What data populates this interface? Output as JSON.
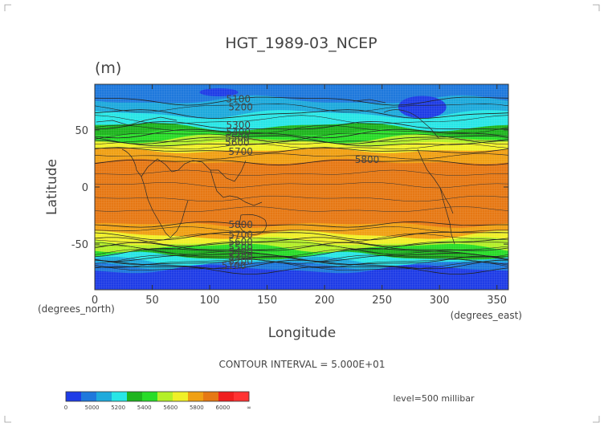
{
  "chart_data": {
    "type": "heatmap",
    "title": "HGT_1989-03_NCEP",
    "units": "(m)",
    "xlabel": "Longitude",
    "ylabel": "Latitude",
    "x_unit_left": "(degrees_north)",
    "x_unit_right": "(degrees_east)",
    "xlim": [
      0,
      360
    ],
    "ylim": [
      -90,
      90
    ],
    "xticks": [
      "0",
      "50",
      "100",
      "150",
      "200",
      "250",
      "300",
      "350"
    ],
    "xtick_values": [
      0,
      50,
      100,
      150,
      200,
      250,
      300,
      350
    ],
    "yticks": [
      "50",
      "0",
      "-50"
    ],
    "ytick_values": [
      50,
      0,
      -50
    ],
    "contour_interval": "CONTOUR INTERVAL = 5.000E+01",
    "level": "level=500 millibar",
    "contour_labels": [
      {
        "text": "5100",
        "lon": 125,
        "lat": 77
      },
      {
        "text": "5200",
        "lon": 127,
        "lat": 70
      },
      {
        "text": "5300",
        "lon": 125,
        "lat": 54
      },
      {
        "text": "5400",
        "lon": 125,
        "lat": 48
      },
      {
        "text": "5500",
        "lon": 124,
        "lat": 43
      },
      {
        "text": "5600",
        "lon": 124,
        "lat": 39
      },
      {
        "text": "5700",
        "lon": 127,
        "lat": 31
      },
      {
        "text": "5800",
        "lon": 237,
        "lat": 24
      },
      {
        "text": "5800",
        "lon": 127,
        "lat": -33
      },
      {
        "text": "5700",
        "lon": 127,
        "lat": -42
      },
      {
        "text": "5600",
        "lon": 127,
        "lat": -48
      },
      {
        "text": "5500",
        "lon": 127,
        "lat": -53
      },
      {
        "text": "5400",
        "lon": 127,
        "lat": -57
      },
      {
        "text": "5300",
        "lon": 127,
        "lat": -61
      },
      {
        "text": "5200",
        "lon": 127,
        "lat": -65
      },
      {
        "text": "5100",
        "lon": 121,
        "lat": -69
      }
    ],
    "bands": {
      "levels": [
        5000,
        5100,
        5200,
        5300,
        5400,
        5500,
        5600,
        5700,
        5800,
        5900,
        6000
      ],
      "colors": [
        "#1e3ce6",
        "#1e78dc",
        "#1eaadc",
        "#28e6e6",
        "#1eb41e",
        "#28dc28",
        "#b4f028",
        "#f0f028",
        "#f0a014",
        "#e67814",
        "#f01e1e",
        "#ff3232"
      ],
      "south_boundaries": [
        {
          "level": 5000,
          "lat": -72
        },
        {
          "level": 5100,
          "lat": -68
        },
        {
          "level": 5200,
          "lat": -65
        },
        {
          "level": 5300,
          "lat": -61
        },
        {
          "level": 5400,
          "lat": -57
        },
        {
          "level": 5500,
          "lat": -53
        },
        {
          "level": 5600,
          "lat": -48
        },
        {
          "level": 5700,
          "lat": -42
        },
        {
          "level": 5800,
          "lat": -33
        }
      ],
      "north_boundaries": [
        {
          "level": 5800,
          "lat": 22
        },
        {
          "level": 5700,
          "lat": 32
        },
        {
          "level": 5600,
          "lat": 38
        },
        {
          "level": 5500,
          "lat": 42
        },
        {
          "level": 5400,
          "lat": 47
        },
        {
          "level": 5300,
          "lat": 53
        },
        {
          "level": 5200,
          "lat": 64
        },
        {
          "level": 5100,
          "lat": 76
        }
      ],
      "lows": [
        {
          "lon": 285,
          "lat": 70,
          "level": 5000
        },
        {
          "lon": 108,
          "lat": 83,
          "level": 5000
        }
      ]
    },
    "colorbar": {
      "labels": [
        "0",
        "5000",
        "5200",
        "5400",
        "5600",
        "5800",
        "6000",
        "∞"
      ],
      "colors": [
        "#1e3ce6",
        "#1e78dc",
        "#1eaadc",
        "#28e6e6",
        "#1eb41e",
        "#28dc28",
        "#b4f028",
        "#f0f028",
        "#f0a014",
        "#e67814",
        "#f01e1e",
        "#ff3232"
      ]
    }
  }
}
